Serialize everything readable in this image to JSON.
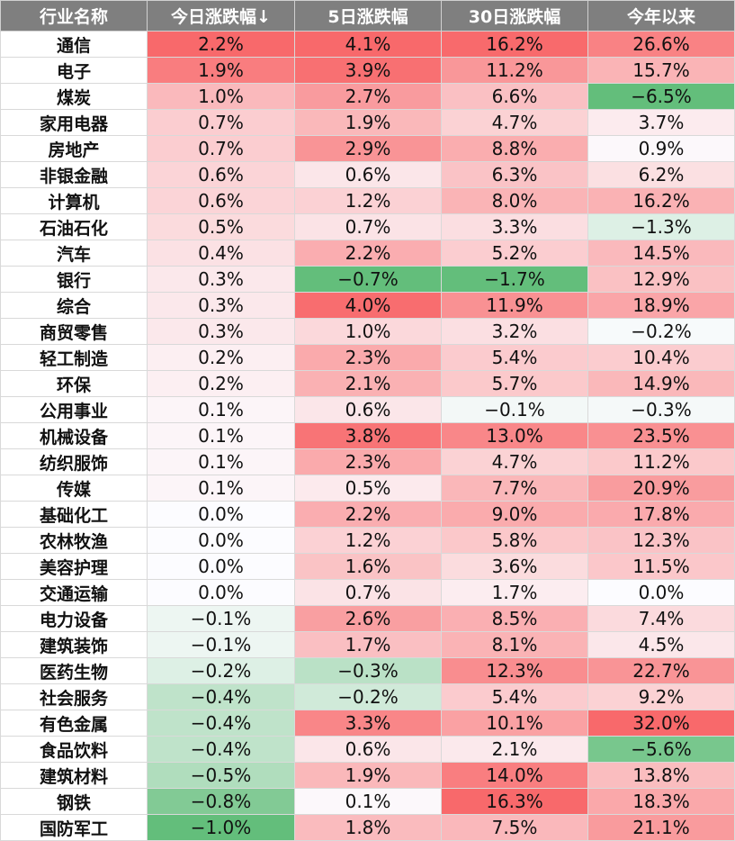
{
  "table": {
    "headers": [
      "行业名称",
      "今日涨跌幅↓",
      "5日涨跌幅",
      "30日涨跌幅",
      "今年以来"
    ],
    "rows": [
      {
        "name": "通信",
        "values": [
          "2.2%",
          "4.1%",
          "16.2%",
          "26.6%"
        ]
      },
      {
        "name": "电子",
        "values": [
          "1.9%",
          "3.9%",
          "11.2%",
          "15.7%"
        ]
      },
      {
        "name": "煤炭",
        "values": [
          "1.0%",
          "2.7%",
          "6.6%",
          "−6.5%"
        ]
      },
      {
        "name": "家用电器",
        "values": [
          "0.7%",
          "1.9%",
          "4.7%",
          "3.7%"
        ]
      },
      {
        "name": "房地产",
        "values": [
          "0.7%",
          "2.9%",
          "8.8%",
          "0.9%"
        ]
      },
      {
        "name": "非银金融",
        "values": [
          "0.6%",
          "0.6%",
          "6.3%",
          "6.2%"
        ]
      },
      {
        "name": "计算机",
        "values": [
          "0.6%",
          "1.2%",
          "8.0%",
          "16.2%"
        ]
      },
      {
        "name": "石油石化",
        "values": [
          "0.5%",
          "0.7%",
          "3.3%",
          "−1.3%"
        ]
      },
      {
        "name": "汽车",
        "values": [
          "0.4%",
          "2.2%",
          "5.2%",
          "14.5%"
        ]
      },
      {
        "name": "银行",
        "values": [
          "0.3%",
          "−0.7%",
          "−1.7%",
          "12.9%"
        ]
      },
      {
        "name": "综合",
        "values": [
          "0.3%",
          "4.0%",
          "11.9%",
          "18.9%"
        ]
      },
      {
        "name": "商贸零售",
        "values": [
          "0.3%",
          "1.0%",
          "3.2%",
          "−0.2%"
        ]
      },
      {
        "name": "轻工制造",
        "values": [
          "0.2%",
          "2.3%",
          "5.4%",
          "10.4%"
        ]
      },
      {
        "name": "环保",
        "values": [
          "0.2%",
          "2.1%",
          "5.7%",
          "14.9%"
        ]
      },
      {
        "name": "公用事业",
        "values": [
          "0.1%",
          "0.6%",
          "−0.1%",
          "−0.3%"
        ]
      },
      {
        "name": "机械设备",
        "values": [
          "0.1%",
          "3.8%",
          "13.0%",
          "23.5%"
        ]
      },
      {
        "name": "纺织服饰",
        "values": [
          "0.1%",
          "2.3%",
          "4.7%",
          "11.2%"
        ]
      },
      {
        "name": "传媒",
        "values": [
          "0.1%",
          "0.5%",
          "7.7%",
          "20.9%"
        ]
      },
      {
        "name": "基础化工",
        "values": [
          "0.0%",
          "2.2%",
          "9.0%",
          "17.8%"
        ]
      },
      {
        "name": "农林牧渔",
        "values": [
          "0.0%",
          "1.2%",
          "5.8%",
          "12.3%"
        ]
      },
      {
        "name": "美容护理",
        "values": [
          "0.0%",
          "1.6%",
          "3.6%",
          "11.5%"
        ]
      },
      {
        "name": "交通运输",
        "values": [
          "0.0%",
          "0.7%",
          "1.7%",
          "0.0%"
        ]
      },
      {
        "name": "电力设备",
        "values": [
          "−0.1%",
          "2.6%",
          "8.5%",
          "7.4%"
        ]
      },
      {
        "name": "建筑装饰",
        "values": [
          "−0.1%",
          "1.7%",
          "8.1%",
          "4.5%"
        ]
      },
      {
        "name": "医药生物",
        "values": [
          "−0.2%",
          "−0.3%",
          "12.3%",
          "22.7%"
        ]
      },
      {
        "name": "社会服务",
        "values": [
          "−0.4%",
          "−0.2%",
          "5.4%",
          "9.2%"
        ]
      },
      {
        "name": "有色金属",
        "values": [
          "−0.4%",
          "3.3%",
          "10.1%",
          "32.0%"
        ]
      },
      {
        "name": "食品饮料",
        "values": [
          "−0.4%",
          "0.6%",
          "2.1%",
          "−5.6%"
        ]
      },
      {
        "name": "建筑材料",
        "values": [
          "−0.5%",
          "1.9%",
          "14.0%",
          "13.8%"
        ]
      },
      {
        "name": "钢铁",
        "values": [
          "−0.8%",
          "0.1%",
          "16.3%",
          "18.3%"
        ]
      },
      {
        "name": "国防军工",
        "values": [
          "−1.0%",
          "1.8%",
          "7.5%",
          "21.1%"
        ]
      }
    ]
  },
  "colors": {
    "header_bg": "#7f7f7f",
    "positive_max": "#f8696b",
    "negative_max": "#63be7b",
    "neutral": "#fcfcff"
  }
}
